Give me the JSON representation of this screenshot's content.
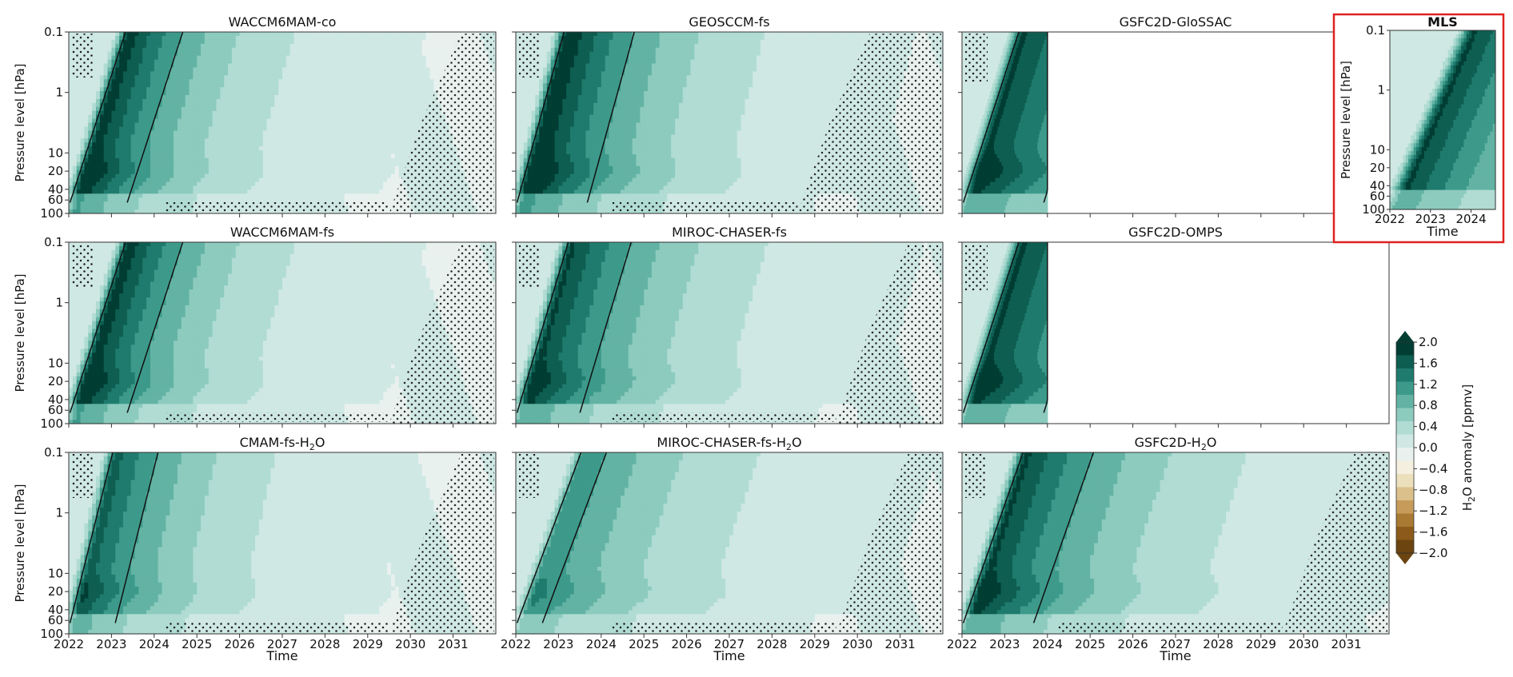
{
  "chart_data": {
    "type": "heatmap",
    "description_kind": "contour",
    "x_unit": "year",
    "xlabel": "Time",
    "ylabel": "Pressure level [hPa]",
    "y_scale": "log",
    "y_ticks": [
      "0.1",
      "1",
      "10",
      "20",
      "40",
      "60",
      "100"
    ],
    "x_ticks": [
      "2022",
      "2023",
      "2024",
      "2025",
      "2026",
      "2027",
      "2028",
      "2029",
      "2030",
      "2031"
    ],
    "x_range": [
      2022,
      2032
    ],
    "y_range": [
      100,
      0.1
    ],
    "colorbar": {
      "label": "H2O anomaly [ppmv]",
      "label_main": "H",
      "label_sub": "2",
      "label_rest": "O anomaly [ppmv]",
      "ticks": [
        "2.0",
        "1.6",
        "1.2",
        "0.8",
        "0.4",
        "0.0",
        "−0.4",
        "−0.8",
        "−1.2",
        "−1.6",
        "−2.0"
      ],
      "range": [
        -2.0,
        2.0
      ],
      "extend": "both",
      "colors": [
        "#6b4410",
        "#8c5a1a",
        "#a97a34",
        "#c79c5a",
        "#dcc08b",
        "#ece0bc",
        "#f5efdf",
        "#e9f1ef",
        "#cfe8e3",
        "#b0dcd3",
        "#8ccbbe",
        "#63b3a4",
        "#3d9a8b",
        "#1f7b6d",
        "#0e5e52",
        "#013d33"
      ]
    },
    "panels": [
      {
        "title": "WACCM6MAM-co",
        "title_sub": "",
        "peak": 1.9,
        "decay_years": 1.9,
        "rise_years": 1.3,
        "time_end": 2032,
        "hatch": "late"
      },
      {
        "title": "GEOSCCM-fs",
        "title_sub": "",
        "peak": 2.0,
        "decay_years": 2.2,
        "rise_years": 1.1,
        "time_end": 2032,
        "hatch": "late-wide"
      },
      {
        "title": "GSFC2D-GloSSAC",
        "title_sub": "",
        "peak": 1.8,
        "decay_years": 3.0,
        "rise_years": 1.3,
        "time_end": 2024,
        "hatch": "early"
      },
      {
        "title": "WACCM6MAM-fs",
        "title_sub": "",
        "peak": 1.9,
        "decay_years": 1.9,
        "rise_years": 1.3,
        "time_end": 2032,
        "hatch": "late"
      },
      {
        "title": "MIROC-CHASER-fs",
        "title_sub": "",
        "peak": 1.8,
        "decay_years": 2.3,
        "rise_years": 1.2,
        "time_end": 2032,
        "hatch": "late"
      },
      {
        "title": "GSFC2D-OMPS",
        "title_sub": "",
        "peak": 1.8,
        "decay_years": 3.0,
        "rise_years": 1.3,
        "time_end": 2024,
        "hatch": "early"
      },
      {
        "title": "CMAM-fs-H",
        "title_sub": "2",
        "title_rest": "O",
        "peak": 1.6,
        "decay_years": 2.0,
        "rise_years": 1.0,
        "time_end": 2032,
        "hatch": "late"
      },
      {
        "title": "MIROC-CHASER-fs-H",
        "title_sub": "2",
        "title_rest": "O",
        "peak": 1.2,
        "decay_years": 2.6,
        "rise_years": 1.5,
        "time_end": 2032,
        "hatch": "late"
      },
      {
        "title": "GSFC2D-H",
        "title_sub": "2",
        "title_rest": "O",
        "peak": 1.8,
        "decay_years": 2.6,
        "rise_years": 1.4,
        "time_end": 2032,
        "hatch": "late"
      }
    ],
    "inset": {
      "title": "MLS",
      "x_ticks": [
        "2022",
        "2023",
        "2024"
      ],
      "x_range": [
        2022,
        2024.6
      ],
      "xlabel": "Time",
      "ylabel": "Pressure level [hPa]",
      "highlight_color": "#e02020"
    }
  }
}
